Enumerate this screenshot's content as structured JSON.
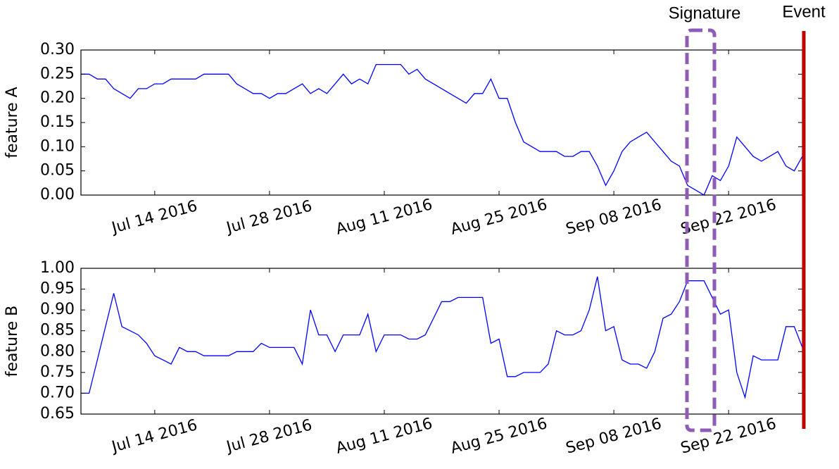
{
  "chart_data": [
    {
      "type": "line",
      "ylabel": "feature A",
      "x": [
        "2016-07-05",
        "2016-07-06",
        "2016-07-07",
        "2016-07-08",
        "2016-07-09",
        "2016-07-10",
        "2016-07-11",
        "2016-07-12",
        "2016-07-13",
        "2016-07-14",
        "2016-07-15",
        "2016-07-16",
        "2016-07-17",
        "2016-07-18",
        "2016-07-19",
        "2016-07-20",
        "2016-07-21",
        "2016-07-22",
        "2016-07-23",
        "2016-07-24",
        "2016-07-25",
        "2016-07-26",
        "2016-07-27",
        "2016-07-28",
        "2016-07-29",
        "2016-07-30",
        "2016-07-31",
        "2016-08-01",
        "2016-08-02",
        "2016-08-03",
        "2016-08-04",
        "2016-08-05",
        "2016-08-06",
        "2016-08-07",
        "2016-08-08",
        "2016-08-09",
        "2016-08-10",
        "2016-08-11",
        "2016-08-12",
        "2016-08-13",
        "2016-08-14",
        "2016-08-15",
        "2016-08-16",
        "2016-08-17",
        "2016-08-18",
        "2016-08-19",
        "2016-08-20",
        "2016-08-21",
        "2016-08-22",
        "2016-08-23",
        "2016-08-24",
        "2016-08-25",
        "2016-08-26",
        "2016-08-27",
        "2016-08-28",
        "2016-08-29",
        "2016-08-30",
        "2016-08-31",
        "2016-09-01",
        "2016-09-02",
        "2016-09-03",
        "2016-09-04",
        "2016-09-05",
        "2016-09-06",
        "2016-09-07",
        "2016-09-08",
        "2016-09-09",
        "2016-09-10",
        "2016-09-11",
        "2016-09-12",
        "2016-09-13",
        "2016-09-14",
        "2016-09-15",
        "2016-09-16",
        "2016-09-17",
        "2016-09-18",
        "2016-09-19",
        "2016-09-20",
        "2016-09-21",
        "2016-09-22",
        "2016-09-23",
        "2016-09-24",
        "2016-09-25",
        "2016-09-26",
        "2016-09-27",
        "2016-09-28",
        "2016-09-29",
        "2016-09-30",
        "2016-10-01"
      ],
      "series": [
        {
          "color": "#0000ff",
          "values": [
            0.25,
            0.25,
            0.24,
            0.24,
            0.22,
            0.21,
            0.2,
            0.22,
            0.22,
            0.23,
            0.23,
            0.24,
            0.24,
            0.24,
            0.24,
            0.25,
            0.25,
            0.25,
            0.25,
            0.23,
            0.22,
            0.21,
            0.21,
            0.2,
            0.21,
            0.21,
            0.22,
            0.23,
            0.21,
            0.22,
            0.21,
            0.23,
            0.25,
            0.23,
            0.24,
            0.23,
            0.27,
            0.27,
            0.27,
            0.27,
            0.25,
            0.26,
            0.24,
            0.23,
            0.22,
            0.21,
            0.2,
            0.19,
            0.21,
            0.21,
            0.24,
            0.2,
            0.2,
            0.15,
            0.11,
            0.1,
            0.09,
            0.09,
            0.09,
            0.08,
            0.08,
            0.09,
            0.09,
            0.06,
            0.02,
            0.05,
            0.09,
            0.11,
            0.12,
            0.13,
            0.11,
            0.09,
            0.07,
            0.06,
            0.02,
            0.01,
            0.0,
            0.04,
            0.03,
            0.06,
            0.12,
            0.1,
            0.08,
            0.07,
            0.08,
            0.09,
            0.06,
            0.05,
            0.08
          ]
        }
      ],
      "xlim": [
        "2016-07-05",
        "2016-10-01"
      ],
      "xticks": [
        {
          "value": "2016-07-14",
          "label": "Jul 14 2016"
        },
        {
          "value": "2016-07-28",
          "label": "Jul 28 2016"
        },
        {
          "value": "2016-08-11",
          "label": "Aug 11 2016"
        },
        {
          "value": "2016-08-25",
          "label": "Aug 25 2016"
        },
        {
          "value": "2016-09-08",
          "label": "Sep 08 2016"
        },
        {
          "value": "2016-09-22",
          "label": "Sep 22 2016"
        }
      ],
      "ylim": [
        0,
        0.3
      ],
      "yticks": [
        {
          "value": 0,
          "label": "0.00"
        },
        {
          "value": 0.05,
          "label": "0.05"
        },
        {
          "value": 0.1,
          "label": "0.10"
        },
        {
          "value": 0.15,
          "label": "0.15"
        },
        {
          "value": 0.2,
          "label": "0.20"
        },
        {
          "value": 0.25,
          "label": "0.25"
        },
        {
          "value": 0.3,
          "label": "0.30"
        }
      ]
    },
    {
      "type": "line",
      "ylabel": "feature B",
      "x": [
        "2016-07-05",
        "2016-07-06",
        "2016-07-07",
        "2016-07-08",
        "2016-07-09",
        "2016-07-10",
        "2016-07-11",
        "2016-07-12",
        "2016-07-13",
        "2016-07-14",
        "2016-07-15",
        "2016-07-16",
        "2016-07-17",
        "2016-07-18",
        "2016-07-19",
        "2016-07-20",
        "2016-07-21",
        "2016-07-22",
        "2016-07-23",
        "2016-07-24",
        "2016-07-25",
        "2016-07-26",
        "2016-07-27",
        "2016-07-28",
        "2016-07-29",
        "2016-07-30",
        "2016-07-31",
        "2016-08-01",
        "2016-08-02",
        "2016-08-03",
        "2016-08-04",
        "2016-08-05",
        "2016-08-06",
        "2016-08-07",
        "2016-08-08",
        "2016-08-09",
        "2016-08-10",
        "2016-08-11",
        "2016-08-12",
        "2016-08-13",
        "2016-08-14",
        "2016-08-15",
        "2016-08-16",
        "2016-08-17",
        "2016-08-18",
        "2016-08-19",
        "2016-08-20",
        "2016-08-21",
        "2016-08-22",
        "2016-08-23",
        "2016-08-24",
        "2016-08-25",
        "2016-08-26",
        "2016-08-27",
        "2016-08-28",
        "2016-08-29",
        "2016-08-30",
        "2016-08-31",
        "2016-09-01",
        "2016-09-02",
        "2016-09-03",
        "2016-09-04",
        "2016-09-05",
        "2016-09-06",
        "2016-09-07",
        "2016-09-08",
        "2016-09-09",
        "2016-09-10",
        "2016-09-11",
        "2016-09-12",
        "2016-09-13",
        "2016-09-14",
        "2016-09-15",
        "2016-09-16",
        "2016-09-17",
        "2016-09-18",
        "2016-09-19",
        "2016-09-20",
        "2016-09-21",
        "2016-09-22",
        "2016-09-23",
        "2016-09-24",
        "2016-09-25",
        "2016-09-26",
        "2016-09-27",
        "2016-09-28",
        "2016-09-29",
        "2016-09-30",
        "2016-10-01"
      ],
      "series": [
        {
          "color": "#0000ff",
          "values": [
            0.7,
            0.7,
            0.78,
            0.86,
            0.94,
            0.86,
            0.85,
            0.84,
            0.82,
            0.79,
            0.78,
            0.77,
            0.81,
            0.8,
            0.8,
            0.79,
            0.79,
            0.79,
            0.79,
            0.8,
            0.8,
            0.8,
            0.82,
            0.81,
            0.81,
            0.81,
            0.81,
            0.77,
            0.9,
            0.84,
            0.84,
            0.8,
            0.84,
            0.84,
            0.84,
            0.89,
            0.8,
            0.84,
            0.84,
            0.84,
            0.83,
            0.83,
            0.84,
            0.88,
            0.92,
            0.92,
            0.93,
            0.93,
            0.93,
            0.93,
            0.82,
            0.83,
            0.74,
            0.74,
            0.75,
            0.75,
            0.75,
            0.77,
            0.85,
            0.84,
            0.84,
            0.85,
            0.9,
            0.98,
            0.85,
            0.86,
            0.78,
            0.77,
            0.77,
            0.76,
            0.8,
            0.88,
            0.89,
            0.92,
            0.97,
            0.97,
            0.97,
            0.93,
            0.89,
            0.9,
            0.75,
            0.69,
            0.79,
            0.78,
            0.78,
            0.78,
            0.86,
            0.86,
            0.81
          ]
        }
      ],
      "xlim": [
        "2016-07-05",
        "2016-10-01"
      ],
      "xticks": [
        {
          "value": "2016-07-14",
          "label": "Jul 14 2016"
        },
        {
          "value": "2016-07-28",
          "label": "Jul 28 2016"
        },
        {
          "value": "2016-08-11",
          "label": "Aug 11 2016"
        },
        {
          "value": "2016-08-25",
          "label": "Aug 25 2016"
        },
        {
          "value": "2016-09-08",
          "label": "Sep 08 2016"
        },
        {
          "value": "2016-09-22",
          "label": "Sep 22 2016"
        }
      ],
      "ylim": [
        0.65,
        1.0
      ],
      "yticks": [
        {
          "value": 0.65,
          "label": "0.65"
        },
        {
          "value": 0.7,
          "label": "0.70"
        },
        {
          "value": 0.75,
          "label": "0.75"
        },
        {
          "value": 0.8,
          "label": "0.80"
        },
        {
          "value": 0.85,
          "label": "0.85"
        },
        {
          "value": 0.9,
          "label": "0.90"
        },
        {
          "value": 0.95,
          "label": "0.95"
        },
        {
          "value": 1.0,
          "label": "1.00"
        }
      ]
    }
  ],
  "annotations": [
    {
      "label": "Signature",
      "color": "#8e5cb6"
    },
    {
      "label": "Event",
      "color": "#c00000"
    }
  ]
}
